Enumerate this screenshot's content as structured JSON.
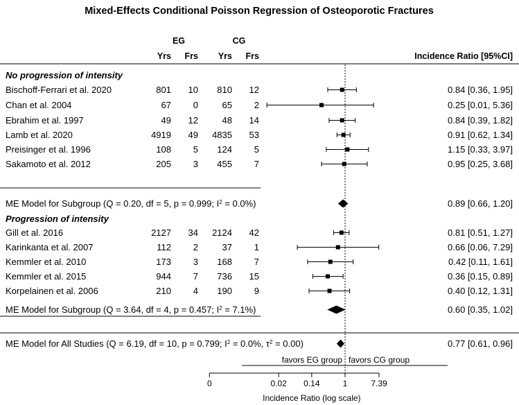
{
  "chart_data": {
    "type": "forest",
    "title": "Mixed-Effects Conditional Poisson Regression of Osteoporotic Fractures",
    "group_headers": {
      "eg": "EG",
      "cg": "CG"
    },
    "col_headers": {
      "eg_yrs": "Yrs",
      "eg_frs": "Frs",
      "cg_yrs": "Yrs",
      "cg_frs": "Frs",
      "ci": "Incidence Ratio [95%CI]"
    },
    "subgroups": [
      {
        "label": "No progression of intensity",
        "studies": [
          {
            "name": "Bischoff-Ferrari et al. 2020",
            "eg_yrs": "801",
            "eg_frs": "10",
            "cg_yrs": "810",
            "cg_frs": "12",
            "ir": 0.84,
            "lo": 0.36,
            "hi": 1.95,
            "ci_text": "0.84 [0.36, 1.95]"
          },
          {
            "name": "Chan et al. 2004",
            "eg_yrs": "67",
            "eg_frs": "0",
            "cg_yrs": "65",
            "cg_frs": "2",
            "ir": 0.25,
            "lo": 0.01,
            "hi": 5.36,
            "ci_text": "0.25 [0.01, 5.36]"
          },
          {
            "name": "Ebrahim et al. 1997",
            "eg_yrs": "49",
            "eg_frs": "12",
            "cg_yrs": "48",
            "cg_frs": "14",
            "ir": 0.84,
            "lo": 0.39,
            "hi": 1.82,
            "ci_text": "0.84 [0.39, 1.82]"
          },
          {
            "name": "Lamb et al. 2020",
            "eg_yrs": "4919",
            "eg_frs": "49",
            "cg_yrs": "4835",
            "cg_frs": "53",
            "ir": 0.91,
            "lo": 0.62,
            "hi": 1.34,
            "ci_text": "0.91 [0.62, 1.34]"
          },
          {
            "name": "Preisinger et al. 1996",
            "eg_yrs": "108",
            "eg_frs": "5",
            "cg_yrs": "124",
            "cg_frs": "5",
            "ir": 1.15,
            "lo": 0.33,
            "hi": 3.97,
            "ci_text": "1.15 [0.33, 3.97]"
          },
          {
            "name": "Sakamoto et al. 2012",
            "eg_yrs": "205",
            "eg_frs": "3",
            "cg_yrs": "455",
            "cg_frs": "7",
            "ir": 0.95,
            "lo": 0.25,
            "hi": 3.68,
            "ci_text": "0.95 [0.25, 3.68]"
          }
        ],
        "model": {
          "label_pre": "ME Model for Subgroup (Q = 0.20, df = 5, p = 0.999; I",
          "label_post": " = 0.0%)",
          "ir": 0.89,
          "lo": 0.66,
          "hi": 1.2,
          "ci_text": "0.89 [0.66, 1.20]"
        }
      },
      {
        "label": "Progression of intensity",
        "studies": [
          {
            "name": "Gill et al. 2016",
            "eg_yrs": "2127",
            "eg_frs": "34",
            "cg_yrs": "2124",
            "cg_frs": "42",
            "ir": 0.81,
            "lo": 0.51,
            "hi": 1.27,
            "ci_text": "0.81 [0.51, 1.27]"
          },
          {
            "name": "Karinkanta et al. 2007",
            "eg_yrs": "112",
            "eg_frs": "2",
            "cg_yrs": "37",
            "cg_frs": "1",
            "ir": 0.66,
            "lo": 0.06,
            "hi": 7.29,
            "ci_text": "0.66 [0.06, 7.29]"
          },
          {
            "name": "Kemmler et al.  2010",
            "eg_yrs": "173",
            "eg_frs": "3",
            "cg_yrs": "168",
            "cg_frs": "7",
            "ir": 0.42,
            "lo": 0.11,
            "hi": 1.61,
            "ci_text": "0.42 [0.11, 1.61]"
          },
          {
            "name": "Kemmler et al. 2015",
            "eg_yrs": "944",
            "eg_frs": "7",
            "cg_yrs": "736",
            "cg_frs": "15",
            "ir": 0.36,
            "lo": 0.15,
            "hi": 0.89,
            "ci_text": "0.36 [0.15, 0.89]"
          },
          {
            "name": "Korpelainen et al. 2006",
            "eg_yrs": "210",
            "eg_frs": "4",
            "cg_yrs": "190",
            "cg_frs": "9",
            "ir": 0.4,
            "lo": 0.12,
            "hi": 1.31,
            "ci_text": "0.40 [0.12, 1.31]"
          }
        ],
        "model": {
          "label_pre": "ME Model for Subgroup (Q = 3.64, df = 4, p = 0.457; I",
          "label_post": " = 7.1%)",
          "ir": 0.6,
          "lo": 0.35,
          "hi": 1.02,
          "ci_text": "0.60 [0.35, 1.02]"
        }
      }
    ],
    "overall": {
      "label_pre": "ME Model for All Studies (Q = 6.19, df = 10, p = 0.799; I",
      "label_mid": " = 0.0%, τ",
      "label_post": " = 0.00)",
      "ir": 0.77,
      "lo": 0.61,
      "hi": 0.96,
      "ci_text": "0.77 [0.61, 0.96]"
    },
    "superscript": "2",
    "axis": {
      "scale": "log",
      "xlabel": "Incidence Ratio (log scale)",
      "ticks": [
        {
          "value": 0.00034,
          "label": "0"
        },
        {
          "value": 0.02,
          "label": "0.02"
        },
        {
          "value": 0.14,
          "label": "0.14"
        },
        {
          "value": 1,
          "label": "1"
        },
        {
          "value": 7.39,
          "label": "7.39"
        }
      ],
      "reference": 1,
      "favors_left": "favors EG group",
      "favors_right": "favors CG group"
    }
  }
}
